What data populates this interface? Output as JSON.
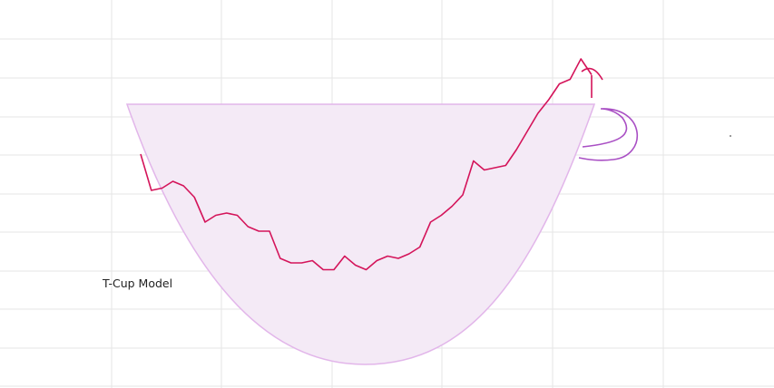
{
  "chart_data": {
    "type": "line",
    "title": "T-Cup Model",
    "xlabel": "",
    "ylabel": "",
    "grid": true,
    "colors": {
      "series": "#d4145a",
      "cup_fill": "#f4eaf6",
      "cup_outline": "#e2b6ea",
      "handle": "#a94fc4",
      "grid": "#e6e6e6"
    },
    "series": [
      {
        "values": [
          100,
          84,
          85,
          88,
          86,
          81,
          70,
          73,
          74,
          73,
          68,
          66,
          66,
          54,
          52,
          52,
          53,
          49,
          49,
          55,
          51,
          49,
          53,
          55,
          54,
          56,
          59,
          70,
          73,
          77,
          82,
          97,
          93,
          94,
          95,
          102,
          110,
          118,
          124,
          131,
          133,
          142,
          135
        ]
      }
    ]
  }
}
